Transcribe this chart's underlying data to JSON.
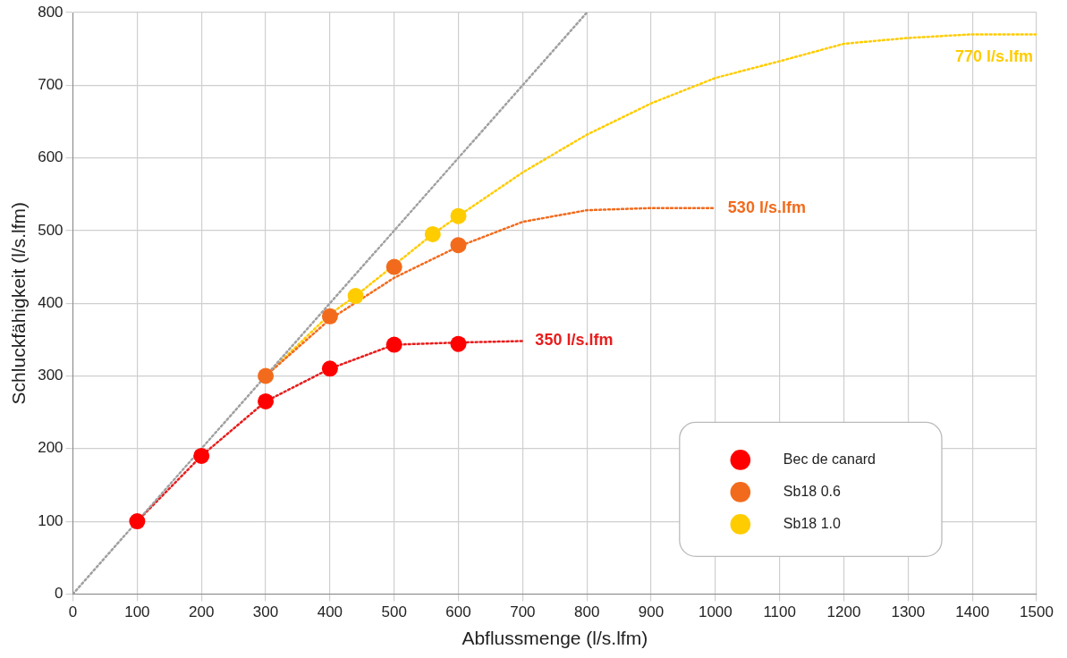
{
  "chart_data": {
    "type": "scatter",
    "xlabel": "Abflussmenge (l/s.lfm)",
    "ylabel": "Schluckfähigkeit (l/s.lfm)",
    "xlim": [
      0,
      1500
    ],
    "xticks": [
      0,
      100,
      200,
      300,
      400,
      500,
      600,
      700,
      800,
      900,
      1000,
      1100,
      1200,
      1300,
      1400,
      1500
    ],
    "ylim": [
      0,
      800
    ],
    "yticks": [
      0,
      100,
      200,
      300,
      400,
      500,
      600,
      700,
      800
    ],
    "grid": true,
    "legend": "bottom right",
    "series": [
      {
        "type": "line",
        "color": "#a0a0a0",
        "line_style": "dotted",
        "marker": "none",
        "x": [
          0,
          800
        ],
        "values": [
          0,
          800
        ]
      },
      {
        "type": "line",
        "color": "#e81c1c",
        "line_style": "dotted",
        "marker": "none",
        "x": [
          100,
          200,
          300,
          400,
          500,
          600,
          700
        ],
        "values": [
          100,
          190,
          265,
          310,
          343,
          346,
          348
        ]
      },
      {
        "type": "line",
        "color": "#f26b1d",
        "line_style": "dotted",
        "marker": "none",
        "x": [
          300,
          400,
          500,
          600,
          700,
          800,
          900,
          1000
        ],
        "values": [
          300,
          378,
          435,
          478,
          512,
          528,
          531,
          531
        ]
      },
      {
        "type": "line",
        "color": "#ffcc00",
        "line_style": "dotted",
        "marker": "none",
        "x": [
          300,
          400,
          440,
          560,
          600,
          700,
          800,
          900,
          1000,
          1100,
          1200,
          1300,
          1400,
          1500
        ],
        "values": [
          300,
          385,
          410,
          495,
          520,
          580,
          632,
          675,
          710,
          733,
          757,
          765,
          770,
          770
        ]
      },
      {
        "type": "scatter",
        "name": "Bec de canard",
        "color": "#ff0000",
        "marker": "circle",
        "x": [
          100,
          200,
          300,
          400,
          500,
          600
        ],
        "values": [
          100,
          190,
          265,
          310,
          343,
          344
        ]
      },
      {
        "type": "scatter",
        "name": "Sb18 0.6",
        "color": "#f26b1d",
        "marker": "circle",
        "x": [
          300,
          400,
          500,
          600
        ],
        "values": [
          300,
          382,
          450,
          480
        ]
      },
      {
        "type": "scatter",
        "name": "Sb18 1.0",
        "color": "#ffcc00",
        "marker": "circle",
        "x": [
          440,
          560,
          600
        ],
        "values": [
          410,
          495,
          520
        ]
      }
    ],
    "annotations": [
      {
        "text": "350 l/s.lfm",
        "x": 700,
        "y": 348
      },
      {
        "text": "530 l/s.lfm",
        "x": 1000,
        "y": 530
      },
      {
        "text": "770 l/s.lfm",
        "x": 1500,
        "y": 770
      }
    ]
  }
}
